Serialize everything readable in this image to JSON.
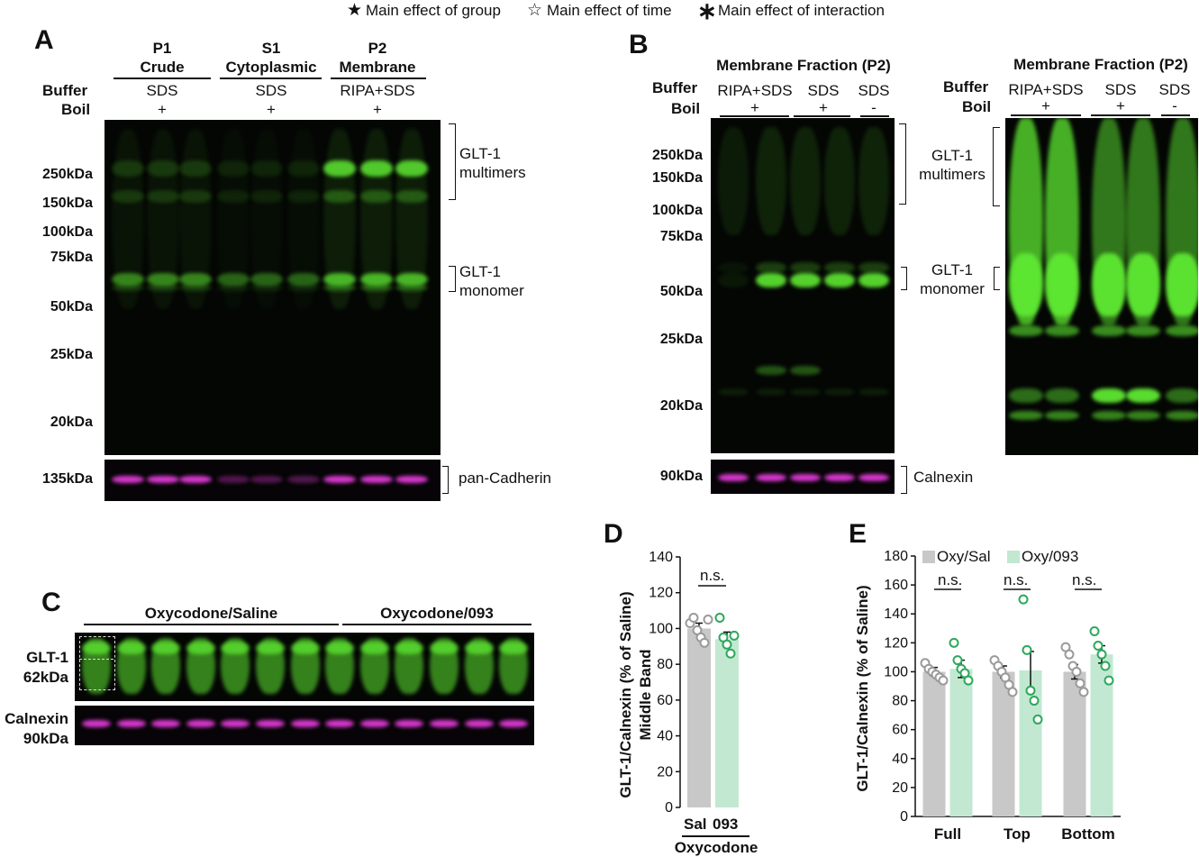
{
  "legend": {
    "group": "Main effect of group",
    "time": "Main effect of time",
    "interaction": "Main effect of interaction",
    "group_icon": "filled-star-icon",
    "time_icon": "open-star-icon",
    "interaction_icon": "asterisk-icon"
  },
  "panelA": {
    "letter": "A",
    "fractions": [
      {
        "title": "P1",
        "sub": "Crude",
        "buffer": "SDS",
        "boil": "+"
      },
      {
        "title": "S1",
        "sub": "Cytoplasmic",
        "buffer": "SDS",
        "boil": "+"
      },
      {
        "title": "P2",
        "sub": "Membrane",
        "buffer": "RIPA+SDS",
        "boil": "+"
      }
    ],
    "buffer_label": "Buffer",
    "boil_label": "Boil",
    "markers": [
      "250kDa",
      "150kDa",
      "100kDa",
      "75kDa",
      "50kDa",
      "25kDa",
      "20kDa"
    ],
    "loading_marker": "135kDa",
    "multimers": "GLT-1\nmultimers",
    "monomer": "GLT-1\nmonomer",
    "loading": "pan-Cadherin"
  },
  "panelB": {
    "letter": "B",
    "title": "Membrane Fraction (P2)",
    "buffer_label": "Buffer",
    "boil_label": "Boil",
    "lanes": [
      {
        "buffer": "RIPA+SDS",
        "boil": "+"
      },
      {
        "buffer": "SDS",
        "boil": "+"
      },
      {
        "buffer": "SDS",
        "boil": "-"
      }
    ],
    "markers": [
      "250kDa",
      "150kDa",
      "100kDa",
      "75kDa",
      "50kDa",
      "25kDa",
      "20kDa"
    ],
    "loading_marker": "90kDa",
    "multimers": "GLT-1\nmultimers",
    "monomer": "GLT-1\nmonomer",
    "loading": "Calnexin"
  },
  "panelC": {
    "letter": "C",
    "group1": "Oxycodone/Saline",
    "group2": "Oxycodone/093",
    "row1": "GLT-1\n62kDa",
    "row2": "Calnexin\n90kDa"
  },
  "colors": {
    "saline_bar": "#c8c8c8",
    "drug_bar": "#c2e8d2",
    "saline_point": "#9a9a9a",
    "drug_point": "#2ea85c",
    "band_green": "#5ee832",
    "band_magenta": "#e23ad8"
  },
  "panelD": {
    "letter": "D",
    "ylabel_line1": "GLT-1/Calnexin (% of Saline)",
    "ylabel_line2": "Middle Band",
    "ns": "n.s.",
    "categories": [
      "Sal",
      "093"
    ],
    "xgroup": "Oxycodone"
  },
  "panelE": {
    "letter": "E",
    "ylabel": "GLT-1/Calnexin (% of Saline)",
    "ns": "n.s.",
    "legend_sal": "Oxy/Sal",
    "legend_093": "Oxy/093",
    "categories": [
      "Full",
      "Top",
      "Bottom"
    ]
  },
  "chart_data": [
    {
      "type": "bar",
      "title": "",
      "xlabel": "Oxycodone",
      "ylabel": "GLT-1/Calnexin (% of Saline) Middle Band",
      "ylim": [
        0,
        140
      ],
      "yticks": [
        0,
        20,
        40,
        60,
        80,
        100,
        120,
        140
      ],
      "categories": [
        "Sal",
        "093"
      ],
      "values": [
        100,
        94
      ],
      "errors": [
        3,
        4
      ],
      "points": [
        [
          103,
          106,
          99,
          95,
          92,
          105
        ],
        [
          106,
          95,
          91,
          86,
          96
        ]
      ]
    },
    {
      "type": "bar",
      "title": "",
      "xlabel": "",
      "ylabel": "GLT-1/Calnexin (% of Saline)",
      "ylim": [
        0,
        180
      ],
      "yticks": [
        0,
        20,
        40,
        60,
        80,
        100,
        120,
        140,
        160,
        180
      ],
      "categories": [
        "Full",
        "Top",
        "Bottom"
      ],
      "legend_position": "top",
      "series": [
        {
          "name": "Oxy/Sal",
          "values": [
            100,
            100,
            100
          ],
          "errors": [
            3,
            4,
            5
          ],
          "points": [
            [
              106,
              102,
              100,
              98,
              96,
              94
            ],
            [
              108,
              104,
              100,
              96,
              91,
              86
            ],
            [
              117,
              112,
              104,
              100,
              92,
              86
            ]
          ]
        },
        {
          "name": "Oxy/093",
          "values": [
            102,
            101,
            112
          ],
          "errors": [
            6,
            13,
            6
          ],
          "points": [
            [
              120,
              108,
              102,
              99,
              94
            ],
            [
              150,
              115,
              87,
              80,
              67
            ],
            [
              128,
              118,
              112,
              104,
              94
            ]
          ]
        }
      ]
    }
  ]
}
